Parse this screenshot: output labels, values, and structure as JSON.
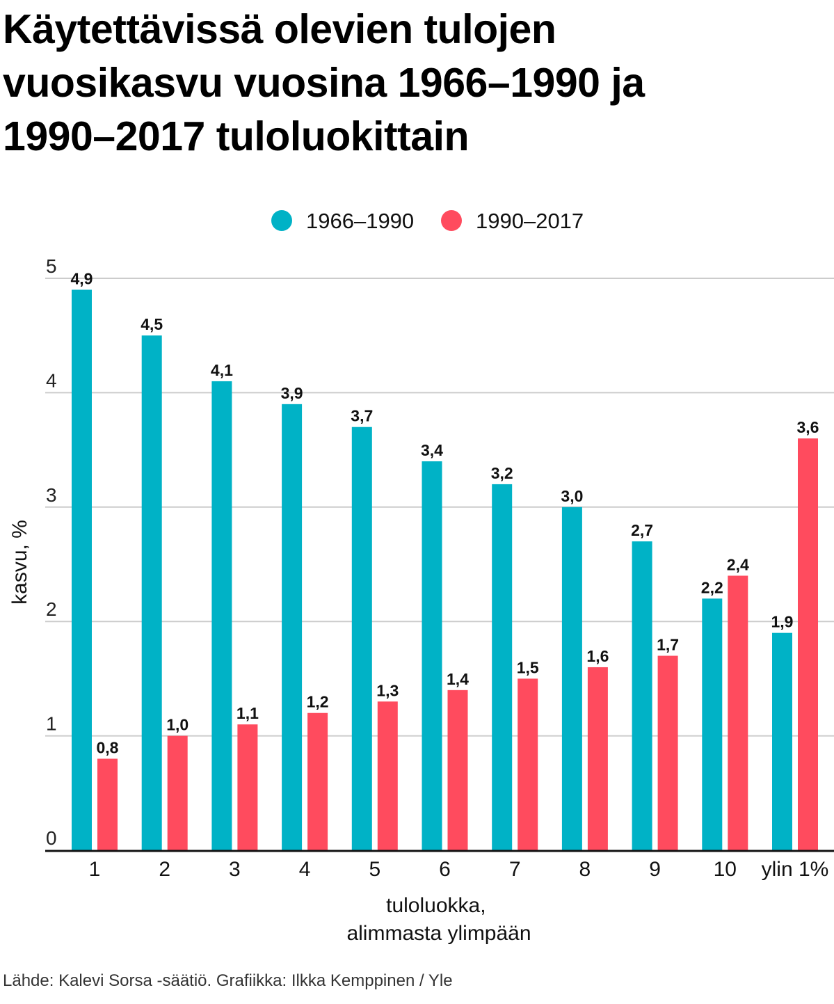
{
  "title": "Käytettävissä olevien tulojen\nvuosikasvu vuosina 1966–1990 ja\n1990–2017 tuloluokittain",
  "source": "Lähde: Kalevi Sorsa -säätiö. Grafiikka: Ilkka Kemppinen / Yle",
  "chart_data": {
    "type": "bar",
    "title": "Käytettävissä olevien tulojen vuosikasvu vuosina 1966–1990 ja 1990–2017 tuloluokittain",
    "categories": [
      "1",
      "2",
      "3",
      "4",
      "5",
      "6",
      "7",
      "8",
      "9",
      "10",
      "ylin 1%"
    ],
    "series": [
      {
        "name": "1966–1990",
        "color": "#00b2c6",
        "values": [
          4.9,
          4.5,
          4.1,
          3.9,
          3.7,
          3.4,
          3.2,
          3.0,
          2.7,
          2.2,
          1.9
        ],
        "labels": [
          "4,9",
          "4,5",
          "4,1",
          "3,9",
          "3,7",
          "3,4",
          "3,2",
          "3,0",
          "2,7",
          "2,2",
          "1,9"
        ]
      },
      {
        "name": "1990–2017",
        "color": "#ff4b5e",
        "values": [
          0.8,
          1.0,
          1.1,
          1.2,
          1.3,
          1.4,
          1.5,
          1.6,
          1.7,
          2.4,
          3.6
        ],
        "labels": [
          "0,8",
          "1,0",
          "1,1",
          "1,2",
          "1,3",
          "1,4",
          "1,5",
          "1,6",
          "1,7",
          "2,4",
          "3,6"
        ]
      }
    ],
    "ylabel": "kasvu, %",
    "xlabel": [
      "tuloluokka,",
      "alimmasta ylimpään"
    ],
    "ylim": [
      0,
      5
    ],
    "yticks": [
      0,
      1,
      2,
      3,
      4,
      5
    ],
    "grid": true,
    "legend": "top-center"
  }
}
